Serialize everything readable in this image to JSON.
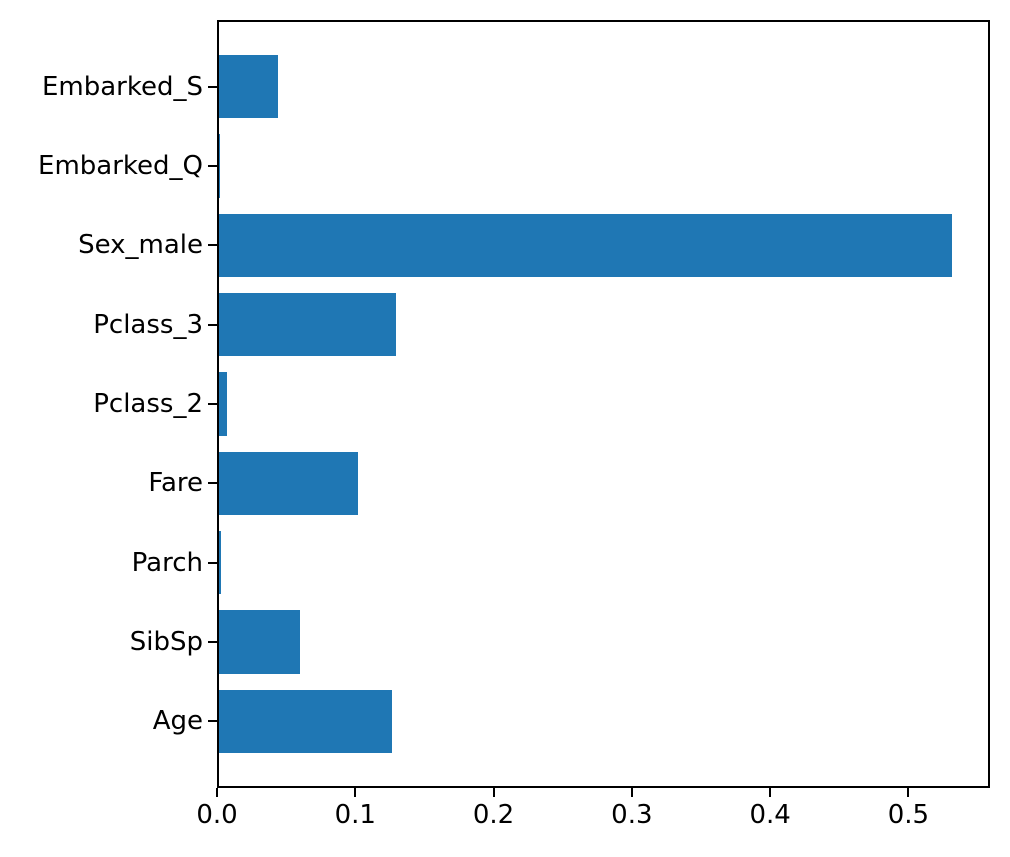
{
  "chart_data": {
    "type": "bar",
    "orientation": "horizontal",
    "title": "",
    "xlabel": "",
    "ylabel": "",
    "categories": [
      "Embarked_S",
      "Embarked_Q",
      "Sex_male",
      "Pclass_3",
      "Pclass_2",
      "Fare",
      "Parch",
      "SibSp",
      "Age"
    ],
    "categories_order": "top-to-bottom",
    "values": [
      0.043,
      0.0004,
      0.533,
      0.129,
      0.006,
      0.101,
      0.0012,
      0.059,
      0.126
    ],
    "xlim": [
      0,
      0.559
    ],
    "xticks": [
      0.0,
      0.1,
      0.2,
      0.3,
      0.4,
      0.5
    ],
    "xtick_labels": [
      "0.0",
      "0.1",
      "0.2",
      "0.3",
      "0.4",
      "0.5"
    ],
    "grid": false,
    "legend_position": "none",
    "bar_color": "#1f77b4",
    "axis_color": "#000000",
    "background_color": "#ffffff"
  }
}
